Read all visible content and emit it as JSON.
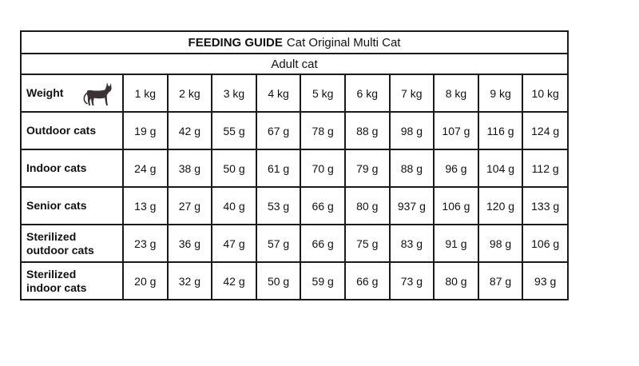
{
  "title": {
    "strong": "FEEDING GUIDE",
    "rest": "Cat Original Multi Cat"
  },
  "subtitle": "Adult cat",
  "weight_label": "Weight",
  "weights": [
    "1 kg",
    "2 kg",
    "3 kg",
    "4 kg",
    "5 kg",
    "6 kg",
    "7 kg",
    "8 kg",
    "9 kg",
    "10 kg"
  ],
  "rows": [
    {
      "label_lines": [
        "Outdoor cats"
      ],
      "values": [
        "19 g",
        "42 g",
        "55 g",
        "67 g",
        "78 g",
        "88 g",
        "98 g",
        "107 g",
        "116 g",
        "124 g"
      ]
    },
    {
      "label_lines": [
        "Indoor cats"
      ],
      "values": [
        "24 g",
        "38 g",
        "50 g",
        "61 g",
        "70 g",
        "79 g",
        "88 g",
        "96 g",
        "104 g",
        "112 g"
      ]
    },
    {
      "label_lines": [
        "Senior cats"
      ],
      "values": [
        "13 g",
        "27 g",
        "40 g",
        "53 g",
        "66 g",
        "80 g",
        "937 g",
        "106 g",
        "120 g",
        "133 g"
      ]
    },
    {
      "label_lines": [
        "Sterilized",
        "outdoor cats"
      ],
      "values": [
        "23 g",
        "36 g",
        "47 g",
        "57 g",
        "66 g",
        "75 g",
        "83 g",
        "91 g",
        "98 g",
        "106 g"
      ]
    },
    {
      "label_lines": [
        "Sterilized",
        "indoor cats"
      ],
      "values": [
        "20 g",
        "32 g",
        "42 g",
        "50 g",
        "59 g",
        "66 g",
        "73 g",
        "80 g",
        "87 g",
        "93 g"
      ]
    }
  ],
  "icon": "cat-icon",
  "colors": {
    "border": "#1a1a1a",
    "cat": "#3b3236"
  }
}
